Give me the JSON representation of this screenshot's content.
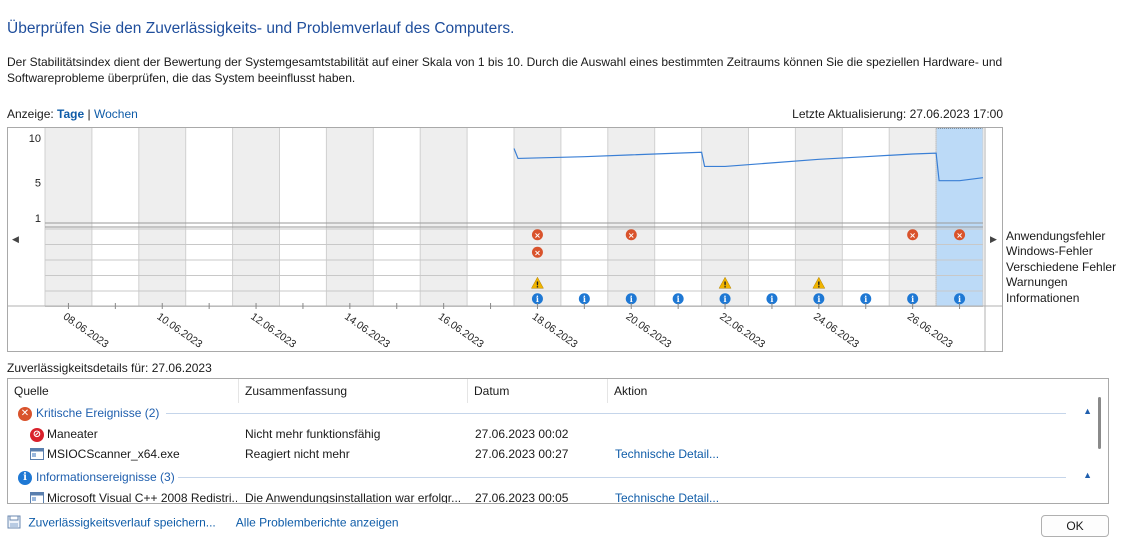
{
  "title": "Überprüfen Sie den Zuverlässigkeits- und Problemverlauf des Computers.",
  "description": "Der Stabilitätsindex dient der Bewertung der Systemgesamtstabilität auf einer Skala von 1 bis 10. Durch die Auswahl eines bestimmten Zeitraums können Sie die speziellen Hardware- und Softwareprobleme überprüfen, die das System beeinflusst haben.",
  "view": {
    "label": "Anzeige:",
    "days": "Tage",
    "separator": "|",
    "weeks": "Wochen"
  },
  "last_update": "Letzte Aktualisierung: 27.06.2023 17:00",
  "chart": {
    "y_ticks": [
      "10",
      "5",
      "1"
    ],
    "row_labels": [
      "Anwendungsfehler",
      "Windows-Fehler",
      "Verschiedene Fehler",
      "Warnungen",
      "Informationen"
    ],
    "date_labels": [
      "08.06.2023",
      "10.06.2023",
      "12.06.2023",
      "14.06.2023",
      "16.06.2023",
      "18.06.2023",
      "20.06.2023",
      "22.06.2023",
      "24.06.2023",
      "26.06.2023"
    ],
    "colors": {
      "line": "#3a7fd5",
      "selected": "#bcdaf7",
      "error": "#d9532c",
      "warning": "#f0b400",
      "info": "#1e78d4"
    }
  },
  "chart_data": {
    "type": "line",
    "title": "",
    "ylabel": "",
    "ylim": [
      1,
      10
    ],
    "x": [
      "18.06.2023",
      "19.06.2023",
      "20.06.2023",
      "21.06.2023",
      "22.06.2023",
      "23.06.2023",
      "24.06.2023",
      "25.06.2023",
      "26.06.2023",
      "27.06.2023"
    ],
    "series": [
      {
        "values": [
          7.7,
          7.9,
          8.1,
          8.3,
          6.8,
          7.2,
          7.6,
          7.9,
          8.2,
          5.2
        ]
      }
    ],
    "events": {
      "application_errors": [
        1,
        0,
        1,
        0,
        0,
        0,
        0,
        0,
        1,
        1
      ],
      "windows_errors": [
        1,
        0,
        0,
        0,
        0,
        0,
        0,
        0,
        0,
        0
      ],
      "misc_errors": [
        0,
        0,
        0,
        0,
        0,
        0,
        0,
        0,
        0,
        0
      ],
      "warnings": [
        1,
        0,
        0,
        0,
        1,
        0,
        1,
        0,
        0,
        0
      ],
      "information": [
        1,
        1,
        1,
        1,
        1,
        1,
        1,
        1,
        1,
        1
      ]
    },
    "selected": "27.06.2023"
  },
  "details": {
    "caption": "Zuverlässigkeitsdetails für: 27.06.2023",
    "columns": [
      "Quelle",
      "Zusammenfassung",
      "Datum",
      "Aktion"
    ],
    "groups": [
      {
        "title": "Kritische Ereignisse (2)",
        "icon": "error-icon",
        "rows": [
          {
            "source": "Maneater",
            "icon": "error-app-icon",
            "summary": "Nicht mehr funktionsfähig",
            "date": "27.06.2023 00:02",
            "action": ""
          },
          {
            "source": "MSIOCScanner_x64.exe",
            "icon": "app-window-icon",
            "summary": "Reagiert nicht mehr",
            "date": "27.06.2023 00:27",
            "action": "Technische Detail..."
          }
        ]
      },
      {
        "title": "Informationsereignisse (3)",
        "icon": "info-icon",
        "rows": [
          {
            "source": "Microsoft Visual C++ 2008 Redistri...",
            "icon": "app-window-icon",
            "summary": "Die Anwendungsinstallation war erfolgr...",
            "date": "27.06.2023 00:05",
            "action": "Technische Detail..."
          }
        ]
      }
    ]
  },
  "bottom": {
    "save_link": "Zuverlässigkeitsverlauf speichern...",
    "reports_link": "Alle Problemberichte anzeigen",
    "ok": "OK"
  }
}
